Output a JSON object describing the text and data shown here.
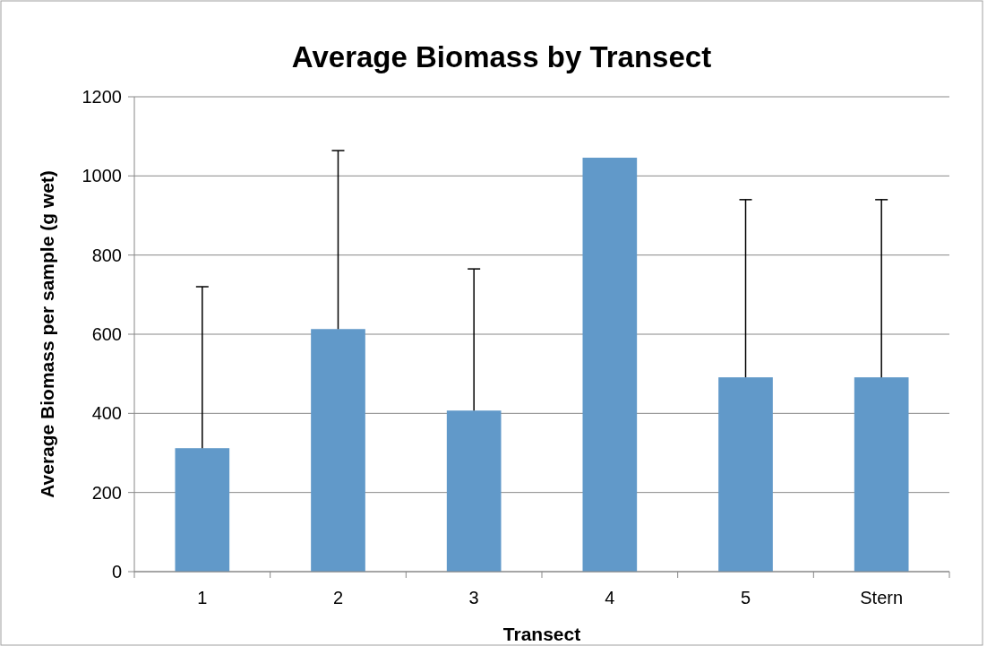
{
  "chart_data": {
    "type": "bar",
    "title": "Average Biomass by Transect",
    "xlabel": "Transect",
    "ylabel": "Average Biomass per sample (g wet)",
    "categories": [
      "1",
      "2",
      "3",
      "4",
      "5",
      "Stern"
    ],
    "values": [
      312,
      613,
      407,
      1046,
      491,
      491
    ],
    "errors": [
      [
        312,
        720
      ],
      [
        613,
        1064
      ],
      [
        407,
        765
      ],
      null,
      [
        491,
        940
      ],
      [
        491,
        940
      ]
    ],
    "color": "#6199c9",
    "ylim": [
      0,
      1200
    ],
    "yticks": [
      0,
      200,
      400,
      600,
      800,
      1000,
      1200
    ],
    "grid": "y"
  }
}
